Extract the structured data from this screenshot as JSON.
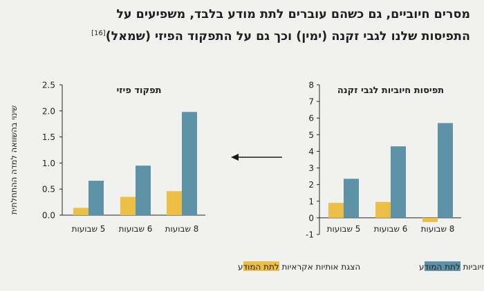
{
  "title": {
    "line1": "מסרים חיוביים, גם כשהם עוברים לתת מודע בלבד, משפיעים על",
    "line2": "התפיסות שלנו לגבי זקנה (ימין) וכך גם על התפקוד הפיזי (שמאל)",
    "ref": "[16]"
  },
  "y_axis_label": "שינוי בהשוואה למדה ההתחלתית",
  "legend": {
    "blue_label": "הצגת מילים חיוביות לתת המודע",
    "yellow_label": "הצגת אותיות אקראיות לתת המודע"
  },
  "colors": {
    "blue": "#5e93a7",
    "yellow": "#eebf47",
    "text": "#222222"
  },
  "chart_data": [
    {
      "type": "bar",
      "title": "תפקוד פיזי",
      "categories": [
        "5 שבועות",
        "6 שבועות",
        "8 שבועות"
      ],
      "series": [
        {
          "color": "yellow",
          "values": [
            0.14,
            0.35,
            0.46
          ]
        },
        {
          "color": "blue",
          "values": [
            0.66,
            0.95,
            1.98
          ]
        }
      ],
      "ylim": [
        0,
        2.5
      ],
      "yticks": [
        "0.0",
        "0.5",
        "1.0",
        "1.5",
        "2.0",
        "2.5"
      ]
    },
    {
      "type": "bar",
      "title": "תפיסות חיוביות לגבי זקנה",
      "categories": [
        "5 שבועות",
        "6 שבועות",
        "8 שבועות"
      ],
      "series": [
        {
          "color": "yellow",
          "values": [
            0.9,
            0.95,
            -0.25
          ]
        },
        {
          "color": "blue",
          "values": [
            2.35,
            4.3,
            5.7
          ]
        }
      ],
      "ylim": [
        -1,
        8
      ],
      "yticks": [
        "-1",
        "0",
        "1",
        "2",
        "3",
        "4",
        "5",
        "6",
        "7",
        "8"
      ]
    }
  ]
}
